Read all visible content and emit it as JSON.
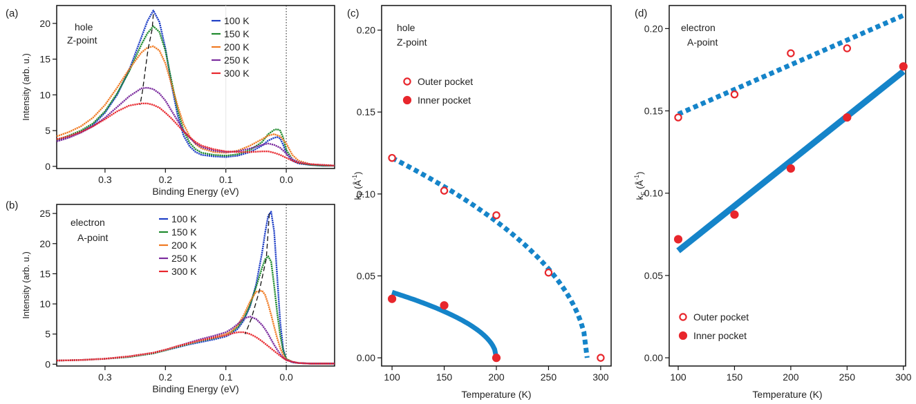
{
  "chart_data": [
    {
      "id": "a",
      "panel_label": "(a)",
      "type": "line",
      "annotation": [
        "hole",
        "Z-point"
      ],
      "xlabel": "Binding Energy (eV)",
      "ylabel": "Intensity (arb. u.)",
      "xlim": [
        0.38,
        -0.08
      ],
      "ylim": [
        -0.3,
        22.5
      ],
      "x_reversed": true,
      "xticks": [
        0.3,
        0.2,
        0.1,
        0.0
      ],
      "xtick_labels": [
        "0.3",
        "0.2",
        "0.1",
        "0.0"
      ],
      "yticks": [
        0,
        5,
        10,
        15,
        20
      ],
      "ytick_labels": [
        "0",
        "5",
        "10",
        "15",
        "20"
      ],
      "legend_position": "top-right",
      "peak_trace": [
        [
          0.22,
          21.3
        ],
        [
          0.222,
          19.2
        ],
        [
          0.229,
          16.3
        ],
        [
          0.238,
          10.5
        ],
        [
          0.242,
          8.6
        ]
      ],
      "series": [
        {
          "name": "100 K",
          "color": "#1f3fc6",
          "x": [
            0.38,
            0.36,
            0.34,
            0.32,
            0.3,
            0.28,
            0.26,
            0.24,
            0.23,
            0.22,
            0.21,
            0.2,
            0.19,
            0.18,
            0.17,
            0.16,
            0.15,
            0.14,
            0.12,
            0.1,
            0.08,
            0.06,
            0.04,
            0.03,
            0.02,
            0.015,
            0.01,
            0.005,
            0.0,
            -0.01,
            -0.02,
            -0.04,
            -0.06,
            -0.08
          ],
          "y": [
            3.6,
            4.1,
            4.8,
            5.8,
            7.5,
            10.0,
            13.5,
            18.0,
            20.3,
            21.8,
            20.2,
            16.5,
            11.5,
            7.2,
            4.3,
            2.8,
            2.0,
            1.6,
            1.4,
            1.3,
            1.5,
            2.0,
            2.9,
            3.6,
            4.0,
            4.1,
            3.9,
            3.0,
            1.8,
            0.8,
            0.4,
            0.2,
            0.1,
            0.1
          ]
        },
        {
          "name": "150 K",
          "color": "#1f8a2e",
          "x": [
            0.38,
            0.36,
            0.34,
            0.32,
            0.3,
            0.28,
            0.26,
            0.24,
            0.23,
            0.22,
            0.21,
            0.2,
            0.19,
            0.18,
            0.17,
            0.16,
            0.15,
            0.14,
            0.12,
            0.1,
            0.08,
            0.06,
            0.04,
            0.03,
            0.02,
            0.015,
            0.01,
            0.005,
            0.0,
            -0.01,
            -0.02,
            -0.04,
            -0.06,
            -0.08
          ],
          "y": [
            3.7,
            4.3,
            5.0,
            6.0,
            7.7,
            10.2,
            13.3,
            17.0,
            18.6,
            19.6,
            18.8,
            16.2,
            12.0,
            8.0,
            5.0,
            3.3,
            2.4,
            1.9,
            1.6,
            1.5,
            1.7,
            2.3,
            3.4,
            4.5,
            5.1,
            5.2,
            5.0,
            4.0,
            2.3,
            1.0,
            0.5,
            0.2,
            0.1,
            0.1
          ]
        },
        {
          "name": "200 K",
          "color": "#f07a22",
          "x": [
            0.38,
            0.36,
            0.34,
            0.32,
            0.3,
            0.28,
            0.26,
            0.24,
            0.23,
            0.22,
            0.21,
            0.2,
            0.19,
            0.18,
            0.17,
            0.16,
            0.15,
            0.14,
            0.12,
            0.1,
            0.08,
            0.06,
            0.04,
            0.03,
            0.02,
            0.01,
            0.0,
            -0.01,
            -0.02,
            -0.04,
            -0.06,
            -0.08
          ],
          "y": [
            4.2,
            4.8,
            5.6,
            6.8,
            8.6,
            11.0,
            13.6,
            15.9,
            16.6,
            16.8,
            16.2,
            14.4,
            11.5,
            8.5,
            5.9,
            4.2,
            3.1,
            2.5,
            2.0,
            1.9,
            2.2,
            2.9,
            3.8,
            4.3,
            4.5,
            4.2,
            3.2,
            1.6,
            0.8,
            0.3,
            0.2,
            0.1
          ]
        },
        {
          "name": "250 K",
          "color": "#7b2c9e",
          "x": [
            0.38,
            0.36,
            0.34,
            0.32,
            0.3,
            0.28,
            0.26,
            0.24,
            0.23,
            0.22,
            0.21,
            0.2,
            0.19,
            0.18,
            0.17,
            0.16,
            0.15,
            0.14,
            0.12,
            0.1,
            0.08,
            0.06,
            0.04,
            0.03,
            0.02,
            0.01,
            0.0,
            -0.01,
            -0.02,
            -0.04,
            -0.06,
            -0.08
          ],
          "y": [
            3.5,
            4.0,
            4.7,
            5.6,
            6.8,
            8.3,
            9.8,
            10.9,
            11.0,
            10.8,
            10.2,
            9.2,
            7.8,
            6.4,
            5.0,
            4.0,
            3.2,
            2.7,
            2.2,
            2.0,
            2.1,
            2.5,
            3.0,
            3.2,
            3.0,
            2.6,
            1.8,
            1.0,
            0.6,
            0.3,
            0.2,
            0.1
          ]
        },
        {
          "name": "300 K",
          "color": "#e8262c",
          "x": [
            0.38,
            0.36,
            0.34,
            0.32,
            0.3,
            0.28,
            0.26,
            0.24,
            0.23,
            0.22,
            0.21,
            0.2,
            0.19,
            0.18,
            0.17,
            0.16,
            0.15,
            0.14,
            0.12,
            0.1,
            0.08,
            0.06,
            0.04,
            0.03,
            0.02,
            0.01,
            0.0,
            -0.01,
            -0.02,
            -0.04,
            -0.06,
            -0.08
          ],
          "y": [
            3.8,
            4.2,
            4.8,
            5.6,
            6.6,
            7.7,
            8.5,
            8.8,
            8.8,
            8.6,
            8.2,
            7.5,
            6.7,
            5.8,
            4.9,
            4.1,
            3.4,
            2.9,
            2.4,
            2.1,
            2.0,
            2.0,
            2.1,
            2.1,
            1.9,
            1.6,
            1.2,
            0.8,
            0.5,
            0.3,
            0.2,
            0.1
          ]
        }
      ]
    },
    {
      "id": "b",
      "panel_label": "(b)",
      "type": "line",
      "annotation": [
        "electron",
        "A-point"
      ],
      "xlabel": "Binding Energy (eV)",
      "ylabel": "Intensity (arb. u.)",
      "xlim": [
        0.38,
        -0.08
      ],
      "ylim": [
        -0.3,
        26.5
      ],
      "x_reversed": true,
      "xticks": [
        0.3,
        0.2,
        0.1,
        0.0
      ],
      "xtick_labels": [
        "0.3",
        "0.2",
        "0.1",
        "0.0"
      ],
      "yticks": [
        0,
        5,
        10,
        15,
        20,
        25
      ],
      "ytick_labels": [
        "0",
        "5",
        "10",
        "15",
        "20",
        "25"
      ],
      "legend_position": "top",
      "peak_trace": [
        [
          0.028,
          25.0
        ],
        [
          0.033,
          17.5
        ],
        [
          0.045,
          12.0
        ],
        [
          0.058,
          7.5
        ],
        [
          0.068,
          5.0
        ]
      ],
      "series": [
        {
          "name": "100 K",
          "color": "#1f3fc6",
          "x": [
            0.38,
            0.34,
            0.3,
            0.26,
            0.22,
            0.2,
            0.18,
            0.16,
            0.14,
            0.12,
            0.1,
            0.09,
            0.08,
            0.07,
            0.06,
            0.05,
            0.04,
            0.035,
            0.03,
            0.025,
            0.02,
            0.015,
            0.01,
            0.005,
            0.0,
            -0.01,
            -0.02,
            -0.04,
            -0.06,
            -0.08
          ],
          "y": [
            0.6,
            0.7,
            0.9,
            1.2,
            1.8,
            2.3,
            2.8,
            3.3,
            3.7,
            4.1,
            4.6,
            5.1,
            5.9,
            7.3,
            9.6,
            13.2,
            18.5,
            21.8,
            24.6,
            25.3,
            22.0,
            14.5,
            7.0,
            2.5,
            0.8,
            0.3,
            0.2,
            0.1,
            0.1,
            0.1
          ]
        },
        {
          "name": "150 K",
          "color": "#1f8a2e",
          "x": [
            0.38,
            0.34,
            0.3,
            0.26,
            0.22,
            0.2,
            0.18,
            0.16,
            0.14,
            0.12,
            0.1,
            0.09,
            0.08,
            0.07,
            0.06,
            0.05,
            0.04,
            0.035,
            0.03,
            0.025,
            0.02,
            0.015,
            0.01,
            0.005,
            0.0,
            -0.01,
            -0.02,
            -0.04,
            -0.06,
            -0.08
          ],
          "y": [
            0.6,
            0.7,
            0.9,
            1.2,
            1.8,
            2.3,
            2.9,
            3.4,
            3.9,
            4.3,
            4.8,
            5.4,
            6.2,
            7.6,
            9.8,
            12.8,
            16.0,
            17.4,
            17.9,
            17.0,
            13.0,
            8.5,
            4.8,
            2.2,
            0.9,
            0.4,
            0.2,
            0.1,
            0.1,
            0.1
          ]
        },
        {
          "name": "200 K",
          "color": "#f07a22",
          "x": [
            0.38,
            0.34,
            0.3,
            0.26,
            0.22,
            0.2,
            0.18,
            0.16,
            0.14,
            0.12,
            0.1,
            0.09,
            0.08,
            0.07,
            0.06,
            0.05,
            0.04,
            0.035,
            0.03,
            0.025,
            0.02,
            0.015,
            0.01,
            0.005,
            0.0,
            -0.01,
            -0.02,
            -0.04,
            -0.06,
            -0.08
          ],
          "y": [
            0.6,
            0.7,
            0.9,
            1.3,
            1.9,
            2.4,
            3.0,
            3.5,
            4.0,
            4.5,
            5.0,
            5.5,
            6.5,
            8.2,
            10.4,
            12.0,
            12.2,
            11.5,
            10.0,
            8.2,
            6.2,
            4.3,
            2.7,
            1.5,
            0.8,
            0.4,
            0.2,
            0.1,
            0.1,
            0.1
          ]
        },
        {
          "name": "250 K",
          "color": "#7b2c9e",
          "x": [
            0.38,
            0.34,
            0.3,
            0.26,
            0.22,
            0.2,
            0.18,
            0.16,
            0.14,
            0.12,
            0.1,
            0.09,
            0.08,
            0.07,
            0.06,
            0.05,
            0.04,
            0.035,
            0.03,
            0.025,
            0.02,
            0.015,
            0.01,
            0.005,
            0.0,
            -0.01,
            -0.02,
            -0.04,
            -0.06,
            -0.08
          ],
          "y": [
            0.6,
            0.7,
            0.9,
            1.3,
            1.9,
            2.4,
            3.0,
            3.6,
            4.2,
            4.7,
            5.3,
            5.9,
            6.7,
            7.6,
            7.9,
            7.5,
            6.5,
            5.8,
            5.0,
            4.1,
            3.2,
            2.4,
            1.7,
            1.1,
            0.7,
            0.4,
            0.2,
            0.1,
            0.1,
            0.1
          ]
        },
        {
          "name": "300 K",
          "color": "#e8262c",
          "x": [
            0.38,
            0.34,
            0.3,
            0.26,
            0.22,
            0.2,
            0.18,
            0.16,
            0.14,
            0.12,
            0.1,
            0.09,
            0.08,
            0.07,
            0.06,
            0.05,
            0.04,
            0.035,
            0.03,
            0.025,
            0.02,
            0.015,
            0.01,
            0.005,
            0.0,
            -0.01,
            -0.02,
            -0.04,
            -0.06,
            -0.08
          ],
          "y": [
            0.6,
            0.7,
            0.9,
            1.3,
            1.9,
            2.4,
            3.0,
            3.5,
            4.0,
            4.4,
            4.8,
            5.1,
            5.3,
            5.3,
            5.0,
            4.5,
            3.8,
            3.4,
            3.0,
            2.6,
            2.2,
            1.8,
            1.4,
            1.0,
            0.7,
            0.4,
            0.2,
            0.1,
            0.1,
            0.1
          ]
        }
      ]
    },
    {
      "id": "c",
      "panel_label": "(c)",
      "type": "scatter",
      "annotation": [
        "hole",
        "Z-point"
      ],
      "xlabel": "Temperature (K)",
      "ylabel_main": "k",
      "ylabel_sub": "F",
      "ylabel_unit": " (Å",
      "ylabel_sup": "-1",
      "ylabel_close": ")",
      "xlim": [
        90,
        310
      ],
      "ylim": [
        -0.005,
        0.215
      ],
      "xticks": [
        100,
        150,
        200,
        250,
        300
      ],
      "xtick_labels": [
        "100",
        "150",
        "200",
        "250",
        "300"
      ],
      "yticks": [
        0.0,
        0.05,
        0.1,
        0.15,
        0.2
      ],
      "ytick_labels": [
        "0.00",
        "0.05",
        "0.10",
        "0.15",
        "0.20"
      ],
      "legend_position": "upper-left",
      "legend": [
        "Outer pocket",
        "Inner pocket"
      ],
      "series": [
        {
          "name": "Outer pocket",
          "marker": "open-circle",
          "color": "#e8262c",
          "x": [
            100,
            150,
            200,
            250,
            300
          ],
          "y": [
            0.122,
            0.102,
            0.087,
            0.052,
            0.0
          ]
        },
        {
          "name": "Inner pocket",
          "marker": "filled-circle",
          "color": "#e8262c",
          "x": [
            100,
            150,
            200
          ],
          "y": [
            0.036,
            0.032,
            0.0
          ]
        }
      ],
      "fits": [
        {
          "style": "dotted",
          "color": "#1584c9",
          "Tc": 287,
          "x0": 100,
          "y0": 0.122
        },
        {
          "style": "solid",
          "color": "#1584c9",
          "Tc": 200,
          "x0": 100,
          "y0": 0.04
        }
      ]
    },
    {
      "id": "d",
      "panel_label": "(d)",
      "type": "scatter",
      "annotation": [
        "electron",
        "A-point"
      ],
      "xlabel": "Temperature (K)",
      "ylabel_main": "k",
      "ylabel_sub": "F",
      "ylabel_unit": " (Å",
      "ylabel_sup": "-1",
      "ylabel_close": ")",
      "xlim": [
        92,
        302
      ],
      "ylim": [
        -0.005,
        0.214
      ],
      "xticks": [
        100,
        150,
        200,
        250,
        300
      ],
      "xtick_labels": [
        "100",
        "150",
        "200",
        "250",
        "300"
      ],
      "yticks": [
        0.0,
        0.05,
        0.1,
        0.15,
        0.2
      ],
      "ytick_labels": [
        "0.00",
        "0.05",
        "0.10",
        "0.15",
        "0.20"
      ],
      "legend_position": "lower-left",
      "legend": [
        "Outer pocket",
        "Inner pocket"
      ],
      "series": [
        {
          "name": "Outer pocket",
          "marker": "open-circle",
          "color": "#e8262c",
          "x": [
            100,
            150,
            200,
            250
          ],
          "y": [
            0.146,
            0.16,
            0.185,
            0.188
          ]
        },
        {
          "name": "Inner pocket",
          "marker": "filled-circle",
          "color": "#e8262c",
          "x": [
            100,
            150,
            200,
            250,
            300
          ],
          "y": [
            0.072,
            0.087,
            0.115,
            0.146,
            0.177
          ]
        }
      ],
      "fits": [
        {
          "style": "dotted",
          "color": "#1584c9",
          "x": [
            100,
            300
          ],
          "y": [
            0.148,
            0.208
          ]
        },
        {
          "style": "solid",
          "color": "#1584c9",
          "x": [
            100,
            300
          ],
          "y": [
            0.065,
            0.174
          ]
        }
      ]
    }
  ]
}
